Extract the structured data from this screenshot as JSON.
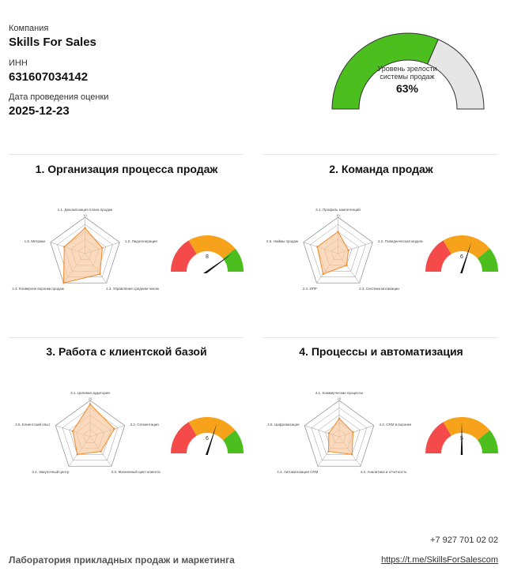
{
  "company": {
    "company_label": "Компания",
    "company_value": "Skills For Sales",
    "inn_label": "ИНН",
    "inn_value": "631607034142",
    "date_label": "Дата проведения оценки",
    "date_value": "2025-12-23"
  },
  "maturity": {
    "caption_line1": "Уровень зрелости",
    "caption_line2": "системы продаж",
    "value_label": "63%",
    "value": 0.63,
    "fill_color": "#4cbf1f",
    "rest_color": "#e6e6e6"
  },
  "sections": [
    {
      "title": "1. Организация процесса продаж",
      "radar": {
        "axes": [
          "1.1. Декомпозиция плана продаж",
          "1.2. Лидогенерация",
          "1.3. Управление средним чеком",
          "1.4. Конверсия воронки продаж",
          "1.5. Метрики"
        ],
        "max": 10,
        "values": [
          7,
          5,
          7,
          10,
          6
        ],
        "scale_max_label": "10"
      },
      "gauge": {
        "value": 8,
        "value_label": "8",
        "max": 10
      }
    },
    {
      "title": "2. Команда продаж",
      "radar": {
        "axes": [
          "2.1. Профиль компетенций",
          "2.2. Поведенческая модель",
          "2.3. Система мотивации",
          "2.4. ИПР",
          "2.5. Наймы продаж"
        ],
        "max": 10,
        "values": [
          6,
          3,
          4,
          7,
          6
        ],
        "scale_max_label": "10"
      },
      "gauge": {
        "value": 6,
        "value_label": "6",
        "max": 10
      }
    },
    {
      "title": "3. Работа с клиентской базой",
      "radar": {
        "axes": [
          "3.1. Целевая аудитория",
          "3.2. Сегментация",
          "3.3. Жизненный цикл клиента",
          "3.4. Закупочный центр",
          "3.5. Клиентский опыт"
        ],
        "max": 10,
        "values": [
          9,
          7,
          5,
          6,
          5
        ],
        "scale_max_label": "10"
      },
      "gauge": {
        "value": 6,
        "value_label": "6",
        "max": 10
      }
    },
    {
      "title": "4. Процессы и автоматизация",
      "radar": {
        "axes": [
          "4.1. Коммерческие процессы",
          "4.2. CRM в воронке",
          "4.3. Аналитика и отчетность",
          "4.4. Автоматизация CRM",
          "4.5. Цифровизация"
        ],
        "max": 10,
        "values": [
          5,
          4,
          6,
          5,
          3
        ],
        "scale_max_label": "10"
      },
      "gauge": {
        "value": 5,
        "value_label": "5",
        "max": 10
      }
    }
  ],
  "gauge_colors": {
    "red": "#f44a4a",
    "orange": "#f7a21b",
    "green": "#4cbf1f",
    "needle": "#111111"
  },
  "radar_colors": {
    "fill": "#f7c49a",
    "stroke": "#f08a2a",
    "grid": "#999999"
  },
  "footer": {
    "org": "Лаборатория прикладных продаж и маркетинга",
    "phone": "+7 927 701 02 02",
    "link": "https://t.me/SkillsForSalescom"
  }
}
